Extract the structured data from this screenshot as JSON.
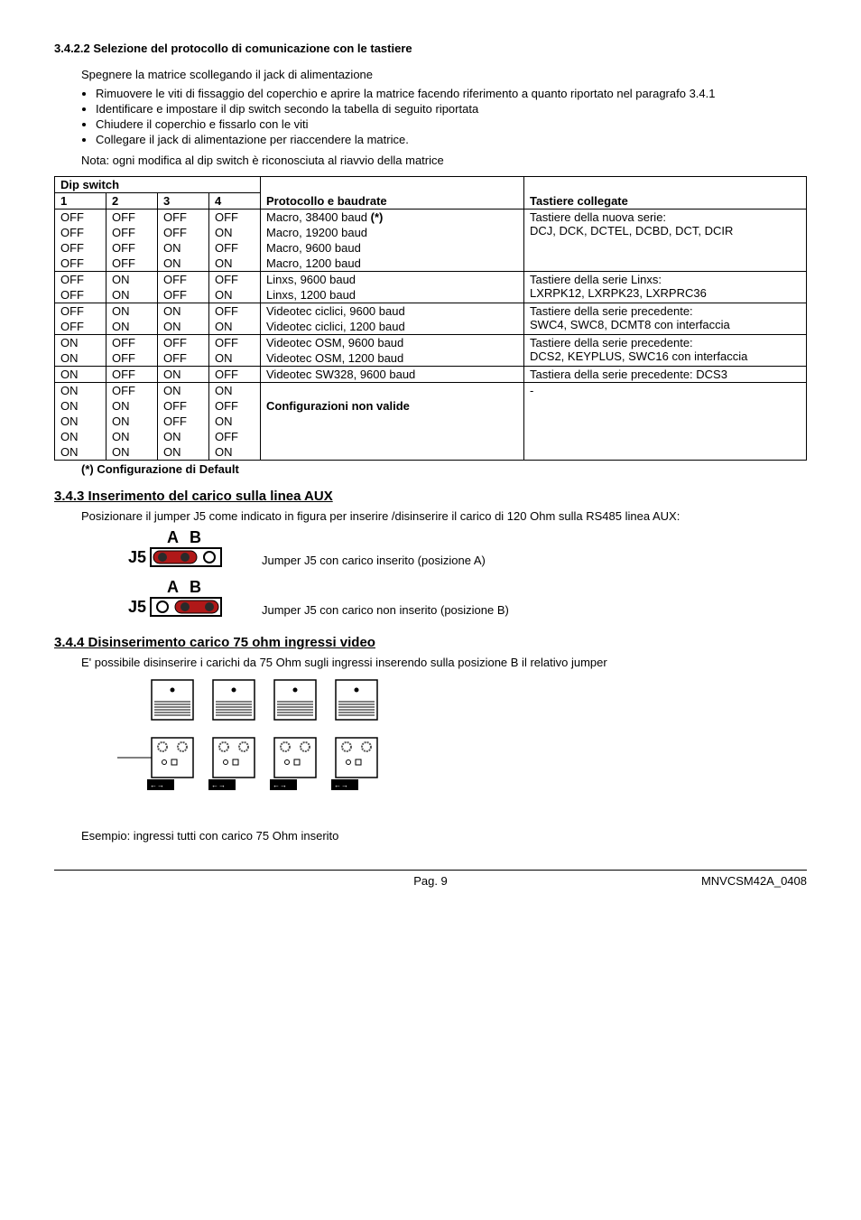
{
  "section3422": {
    "title": "3.4.2.2 Selezione del  protocollo di comunicazione con le tastiere",
    "intro": "Spegnere la matrice scollegando il jack di alimentazione",
    "bullets": [
      "Rimuovere le viti di fissaggio del coperchio e aprire la matrice facendo riferimento a quanto riportato nel paragrafo 3.4.1",
      "Identificare e impostare il dip switch secondo la tabella di seguito riportata",
      "Chiudere il coperchio e fissarlo con le viti",
      "Collegare il jack di alimentazione per riaccendere la matrice."
    ],
    "note": "Nota: ogni modifica al dip switch è riconosciuta al riavvio della matrice"
  },
  "table": {
    "dip_header": "Dip switch",
    "cols": [
      "1",
      "2",
      "3",
      "4"
    ],
    "proto_header": "Protocollo e baudrate",
    "tastiere_header": "Tastiere collegate",
    "groups": [
      {
        "rows": [
          {
            "d": [
              "OFF",
              "OFF",
              "OFF",
              "OFF"
            ],
            "p": "Macro, 38400 baud ",
            "pstar": "(*)"
          },
          {
            "d": [
              "OFF",
              "OFF",
              "OFF",
              "ON"
            ],
            "p": "Macro, 19200 baud"
          },
          {
            "d": [
              "OFF",
              "OFF",
              "ON",
              "OFF"
            ],
            "p": "Macro, 9600 baud"
          },
          {
            "d": [
              "OFF",
              "OFF",
              "ON",
              "ON"
            ],
            "p": "Macro, 1200 baud"
          }
        ],
        "tastiere": [
          "Tastiere della nuova serie:",
          "DCJ, DCK, DCTEL, DCBD, DCT, DCIR"
        ]
      },
      {
        "rows": [
          {
            "d": [
              "OFF",
              "ON",
              "OFF",
              "OFF"
            ],
            "p": "Linxs, 9600 baud"
          },
          {
            "d": [
              "OFF",
              "ON",
              "OFF",
              "ON"
            ],
            "p": "Linxs, 1200 baud"
          }
        ],
        "tastiere": [
          "Tastiere della serie Linxs:",
          "LXRPK12, LXRPK23, LXRPRC36"
        ]
      },
      {
        "rows": [
          {
            "d": [
              "OFF",
              "ON",
              "ON",
              "OFF"
            ],
            "p": "Videotec ciclici, 9600 baud"
          },
          {
            "d": [
              "OFF",
              "ON",
              "ON",
              "ON"
            ],
            "p": "Videotec ciclici, 1200 baud"
          }
        ],
        "tastiere": [
          "Tastiere della serie precedente:",
          "SWC4, SWC8, DCMT8 con interfaccia"
        ]
      },
      {
        "rows": [
          {
            "d": [
              "ON",
              "OFF",
              "OFF",
              "OFF"
            ],
            "p": "Videotec OSM, 9600 baud"
          },
          {
            "d": [
              "ON",
              "OFF",
              "OFF",
              "ON"
            ],
            "p": "Videotec OSM, 1200 baud"
          }
        ],
        "tastiere": [
          "Tastiere della serie precedente:",
          "DCS2, KEYPLUS, SWC16 con interfaccia"
        ]
      },
      {
        "rows": [
          {
            "d": [
              "ON",
              "OFF",
              "ON",
              "OFF"
            ],
            "p": "Videotec SW328, 9600 baud"
          }
        ],
        "tastiere": [
          "Tastiera della serie precedente: DCS3"
        ]
      },
      {
        "rows": [
          {
            "d": [
              "ON",
              "OFF",
              "ON",
              "ON"
            ],
            "p": ""
          },
          {
            "d": [
              "ON",
              "ON",
              "OFF",
              "OFF"
            ],
            "p_bold": "Configurazioni non valide"
          },
          {
            "d": [
              "ON",
              "ON",
              "OFF",
              "ON"
            ],
            "p": ""
          },
          {
            "d": [
              "ON",
              "ON",
              "ON",
              "OFF"
            ],
            "p": ""
          },
          {
            "d": [
              "ON",
              "ON",
              "ON",
              "ON"
            ],
            "p": ""
          }
        ],
        "tastiere": [
          "-"
        ]
      }
    ],
    "footnote": "(*) Configurazione di Default"
  },
  "section343": {
    "title": "3.4.3 Inserimento  del carico sulla linea AUX",
    "intro": "Posizionare il jumper J5 come indicato in figura per inserire /disinserire il carico di 120 Ohm sulla RS485 linea AUX:",
    "rowA": "Jumper J5 con carico inserito (posizione A)",
    "rowB": "Jumper J5 con carico non inserito (posizione B)",
    "labels": {
      "A": "A",
      "B": "B",
      "J5": "J5"
    }
  },
  "section344": {
    "title": "3.4.4 Disinserimento carico 75 ohm ingressi video",
    "intro": "E' possibile disinserire i carichi da 75 Ohm sugli ingressi inserendo sulla posizione B il relativo jumper",
    "example": "Esempio: ingressi tutti con carico 75 Ohm inserito"
  },
  "footer": {
    "page": "Pag. 9",
    "doc": "MNVCSM42A_0408"
  },
  "colors": {
    "jumper_red": "#b01818",
    "jumper_outline": "#2a2a2a",
    "svg_stroke": "#000000"
  }
}
